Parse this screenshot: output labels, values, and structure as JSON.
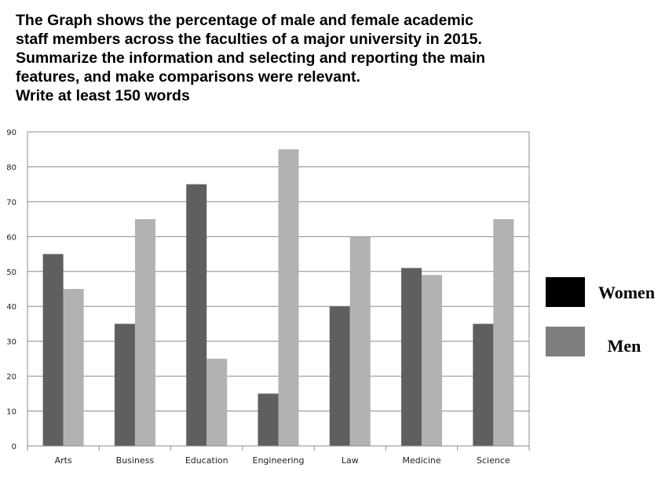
{
  "prompt": {
    "lines": [
      "The Graph shows the percentage of male and female academic",
      "staff members across the faculties of a major university in 2015.",
      "Summarize the information and selecting and reporting the main",
      "features, and make comparisons were relevant.",
      "Write at least 150 words"
    ]
  },
  "chart_data": {
    "type": "bar",
    "title": "",
    "xlabel": "",
    "ylabel": "",
    "categories": [
      "Arts",
      "Business",
      "Education",
      "Engineering",
      "Law",
      "Medicine",
      "Science"
    ],
    "series": [
      {
        "name": "Women",
        "values": [
          55,
          35,
          75,
          15,
          40,
          51,
          35
        ],
        "color": "#5f5f5f"
      },
      {
        "name": "Men",
        "values": [
          45,
          65,
          25,
          85,
          60,
          49,
          65
        ],
        "color": "#b2b2b2"
      }
    ],
    "ylim": [
      0,
      90
    ],
    "yticks": [
      0,
      10,
      20,
      30,
      40,
      50,
      60,
      70,
      80,
      90
    ],
    "grid": true,
    "legend": {
      "position": "right",
      "entries": [
        {
          "label": "Women",
          "swatch_color": "#000000"
        },
        {
          "label": "Men",
          "swatch_color": "#7f7f7f"
        }
      ]
    }
  }
}
